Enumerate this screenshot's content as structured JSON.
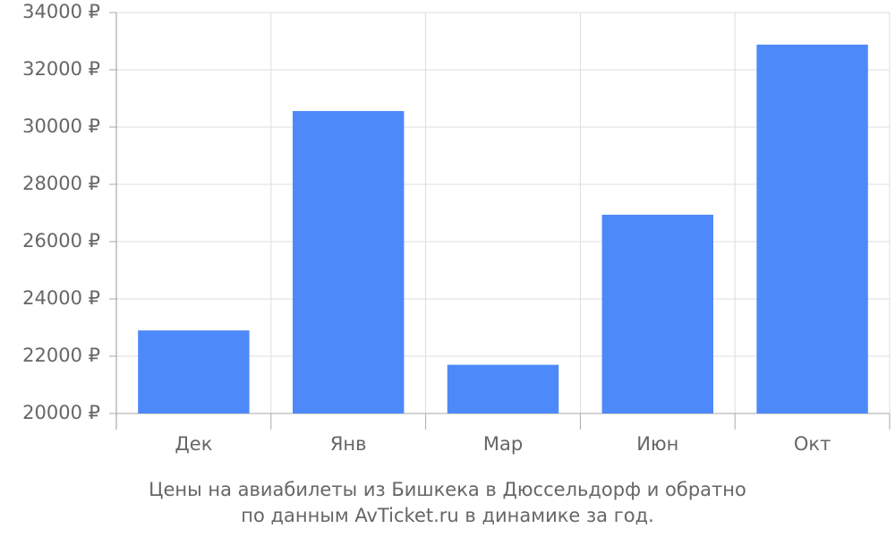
{
  "chart_data": {
    "type": "bar",
    "title": "Цены на авиабилеты из Бишкека в Дюссельдорф и обратно",
    "subtitle": "по данным AvTicket.ru в динамике за год.",
    "categories": [
      "Дек",
      "Янв",
      "Мар",
      "Июн",
      "Окт"
    ],
    "values": [
      22900,
      30560,
      21700,
      26940,
      32880
    ],
    "color": "#4d89f9",
    "ylim": [
      20000,
      34000
    ],
    "yticks": [
      {
        "value": 20000,
        "label": "20000 ₽"
      },
      {
        "value": 22000,
        "label": "22000 ₽"
      },
      {
        "value": 24000,
        "label": "24000 ₽"
      },
      {
        "value": 26000,
        "label": "26000 ₽"
      },
      {
        "value": 28000,
        "label": "28000 ₽"
      },
      {
        "value": 30000,
        "label": "30000 ₽"
      },
      {
        "value": 32000,
        "label": "32000 ₽"
      },
      {
        "value": 34000,
        "label": "34000 ₽"
      }
    ],
    "grid": true
  }
}
